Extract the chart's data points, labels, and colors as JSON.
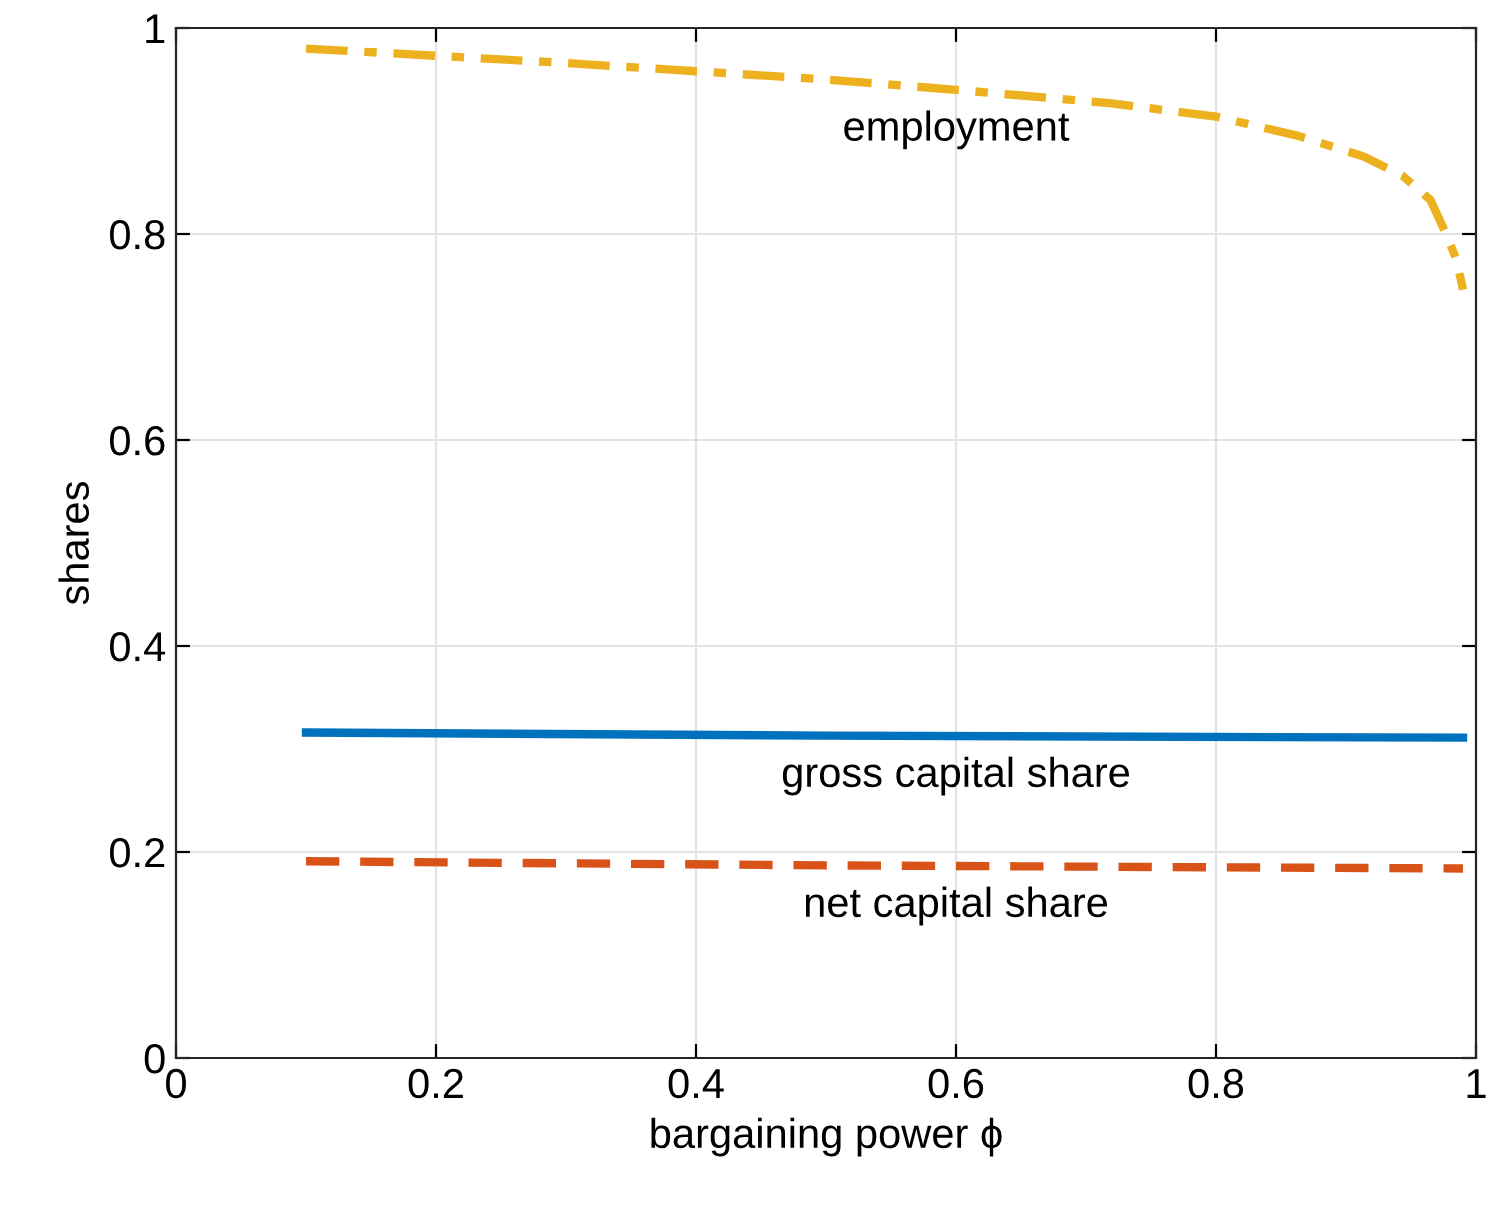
{
  "chart_data": {
    "type": "line",
    "xlabel": "bargaining power ϕ",
    "ylabel": "shares",
    "series": [
      {
        "name": "employment",
        "color": "#edb120",
        "line_style": "dashdot",
        "x": [
          0.1,
          0.2,
          0.3,
          0.4,
          0.5,
          0.6,
          0.718,
          0.8,
          0.864,
          0.914,
          0.944,
          0.965,
          0.977,
          0.985,
          0.99
        ],
        "values": [
          0.98,
          0.973,
          0.966,
          0.958,
          0.95,
          0.94,
          0.927,
          0.914,
          0.895,
          0.875,
          0.856,
          0.833,
          0.8,
          0.775,
          0.746
        ]
      },
      {
        "name": "gross capital share",
        "color": "#0072bd",
        "line_style": "solid",
        "x": [
          0.1,
          0.5,
          0.99
        ],
        "values": [
          0.316,
          0.313,
          0.311
        ]
      },
      {
        "name": "net capital share",
        "color": "#d95319",
        "line_style": "dashed",
        "x": [
          0.1,
          0.5,
          0.99
        ],
        "values": [
          0.191,
          0.187,
          0.184
        ]
      }
    ],
    "xlim": [
      0,
      1
    ],
    "ylim": [
      0,
      1
    ],
    "xticks": [
      0,
      0.2,
      0.4,
      0.6,
      0.8,
      1
    ],
    "yticks": [
      0,
      0.2,
      0.4,
      0.6,
      0.8,
      1
    ],
    "grid": true,
    "legend": false
  }
}
